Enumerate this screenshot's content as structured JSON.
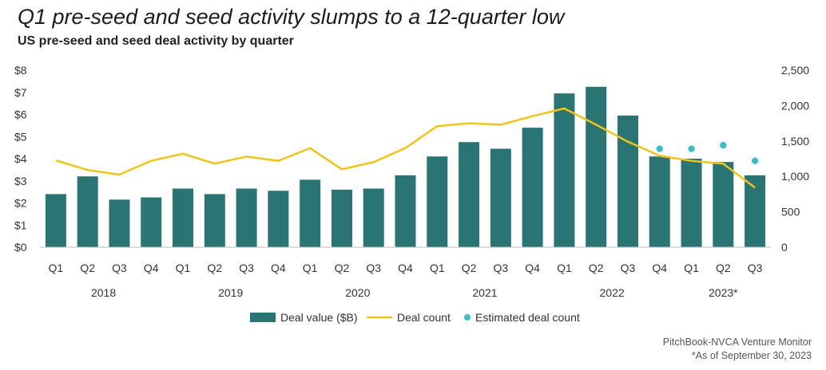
{
  "title": "Q1 pre-seed and seed activity slumps to a 12-quarter low",
  "subtitle": "US pre-seed and seed deal activity by quarter",
  "source": "PitchBook-NVCA Venture Monitor",
  "footnote": "*As of September 30, 2023",
  "colors": {
    "bar": "#2a7474",
    "line": "#f0c419",
    "estimate": "#3cbec6",
    "grid": "#d0d0d0"
  },
  "chart_data": {
    "type": "bar",
    "categories": [
      "Q1",
      "Q2",
      "Q3",
      "Q4",
      "Q1",
      "Q2",
      "Q3",
      "Q4",
      "Q1",
      "Q2",
      "Q3",
      "Q4",
      "Q1",
      "Q2",
      "Q3",
      "Q4",
      "Q1",
      "Q2",
      "Q3",
      "Q4",
      "Q1",
      "Q2",
      "Q3"
    ],
    "year_groups": [
      {
        "label": "2018",
        "start": 0,
        "end": 3
      },
      {
        "label": "2019",
        "start": 4,
        "end": 7
      },
      {
        "label": "2020",
        "start": 8,
        "end": 11
      },
      {
        "label": "2021",
        "start": 12,
        "end": 15
      },
      {
        "label": "2022",
        "start": 16,
        "end": 19
      },
      {
        "label": "2023*",
        "start": 20,
        "end": 22
      }
    ],
    "series": [
      {
        "name": "Deal value ($B)",
        "type": "bar",
        "axis": "left",
        "values": [
          2.4,
          3.2,
          2.15,
          2.25,
          2.65,
          2.4,
          2.65,
          2.55,
          3.05,
          2.6,
          2.65,
          3.25,
          4.1,
          4.75,
          4.45,
          5.4,
          6.95,
          7.25,
          5.95,
          4.1,
          4.0,
          3.85,
          3.25
        ]
      },
      {
        "name": "Deal count",
        "type": "line",
        "axis": "right",
        "values": [
          1225,
          1090,
          1025,
          1220,
          1320,
          1180,
          1280,
          1220,
          1400,
          1100,
          1200,
          1400,
          1710,
          1750,
          1730,
          1850,
          1960,
          1730,
          1490,
          1290,
          1220,
          1180,
          840
        ]
      },
      {
        "name": "Estimated deal count",
        "type": "scatter",
        "axis": "right",
        "values": [
          null,
          null,
          null,
          null,
          null,
          null,
          null,
          null,
          null,
          null,
          null,
          null,
          null,
          null,
          null,
          null,
          null,
          null,
          null,
          1390,
          1390,
          1440,
          1220
        ]
      }
    ],
    "left_axis": {
      "ylim": [
        0,
        8
      ],
      "ticks": [
        "$0",
        "$1",
        "$2",
        "$3",
        "$4",
        "$5",
        "$6",
        "$7",
        "$8"
      ]
    },
    "right_axis": {
      "ylim": [
        0,
        2500
      ],
      "ticks": [
        "0",
        "500",
        "1,000",
        "1,500",
        "2,000",
        "2,500"
      ]
    },
    "legend": {
      "position": "bottom-center",
      "items": [
        "Deal value ($B)",
        "Deal count",
        "Estimated deal count"
      ]
    },
    "grid": false
  }
}
